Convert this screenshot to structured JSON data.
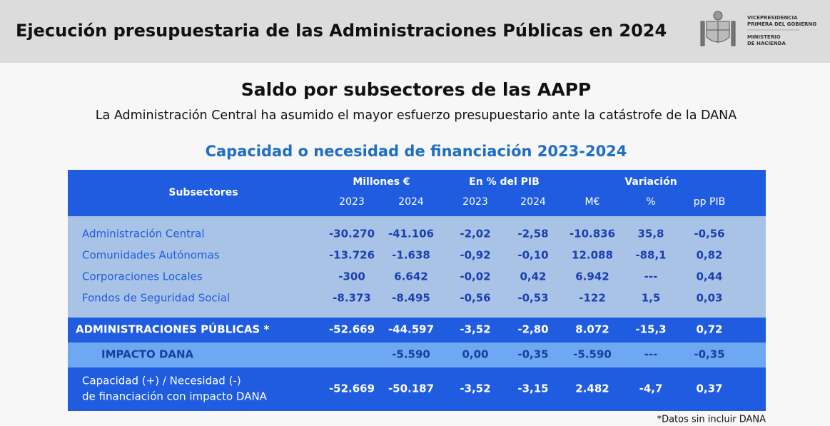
{
  "header": {
    "title": "Ejecución presupuestaria de las Administraciones Públicas en 2024",
    "logo_lines": [
      "VICEPRESIDENCIA",
      "PRIMERA DEL GOBIERNO",
      "MINISTERIO",
      "DE HACIENDA"
    ]
  },
  "heading": "Saldo por subsectores de las AAPP",
  "subheading": "La Administración Central ha asumido el mayor esfuerzo presupuestario ante la catástrofe de la DANA",
  "table": {
    "title": "Capacidad o necesidad de financiación 2023-2024",
    "label_header": "Subsectores",
    "groups": [
      {
        "label": "Millones €",
        "columns": [
          "2023",
          "2024"
        ]
      },
      {
        "label": "En % del PIB",
        "columns": [
          "2023",
          "2024"
        ]
      },
      {
        "label": "Variación",
        "columns": [
          "M€",
          "%",
          "pp PIB"
        ]
      }
    ],
    "rows": [
      {
        "label": [
          "Administración Central"
        ],
        "cells": [
          "-30.270",
          "-41.106",
          "-2,02",
          "-2,58",
          "-10.836",
          "35,8",
          "-0,56"
        ]
      },
      {
        "label": [
          "Comunidades Autónomas"
        ],
        "cells": [
          "-13.726",
          "-1.638",
          "-0,92",
          "-0,10",
          "12.088",
          "-88,1",
          "0,82"
        ]
      },
      {
        "label": [
          "Corporaciones Locales"
        ],
        "cells": [
          "-300",
          "6.642",
          "-0,02",
          "0,42",
          "6.942",
          "---",
          "0,44"
        ]
      },
      {
        "label": [
          "Fondos de Seguridad Social"
        ],
        "cells": [
          "-8.373",
          "-8.495",
          "-0,56",
          "-0,53",
          "-122",
          "1,5",
          "0,03"
        ]
      },
      {
        "label": [
          "ADMINISTRACIONES PÚBLICAS *"
        ],
        "cells": [
          "-52.669",
          "-44.597",
          "-3,52",
          "-2,80",
          "8.072",
          "-15,3",
          "0,72"
        ]
      },
      {
        "label": [
          "IMPACTO DANA"
        ],
        "cells": [
          null,
          "-5.590",
          "0,00",
          "-0,35",
          "-5.590",
          "---",
          "-0,35"
        ]
      },
      {
        "label": [
          "Capacidad (+) / Necesidad (-)",
          "de financiación con impacto DANA"
        ],
        "cells": [
          "-52.669",
          "-50.187",
          "-3,52",
          "-3,15",
          "2.482",
          "-4,7",
          "0,37"
        ]
      }
    ]
  },
  "footnote": "*Datos sin incluir DANA"
}
